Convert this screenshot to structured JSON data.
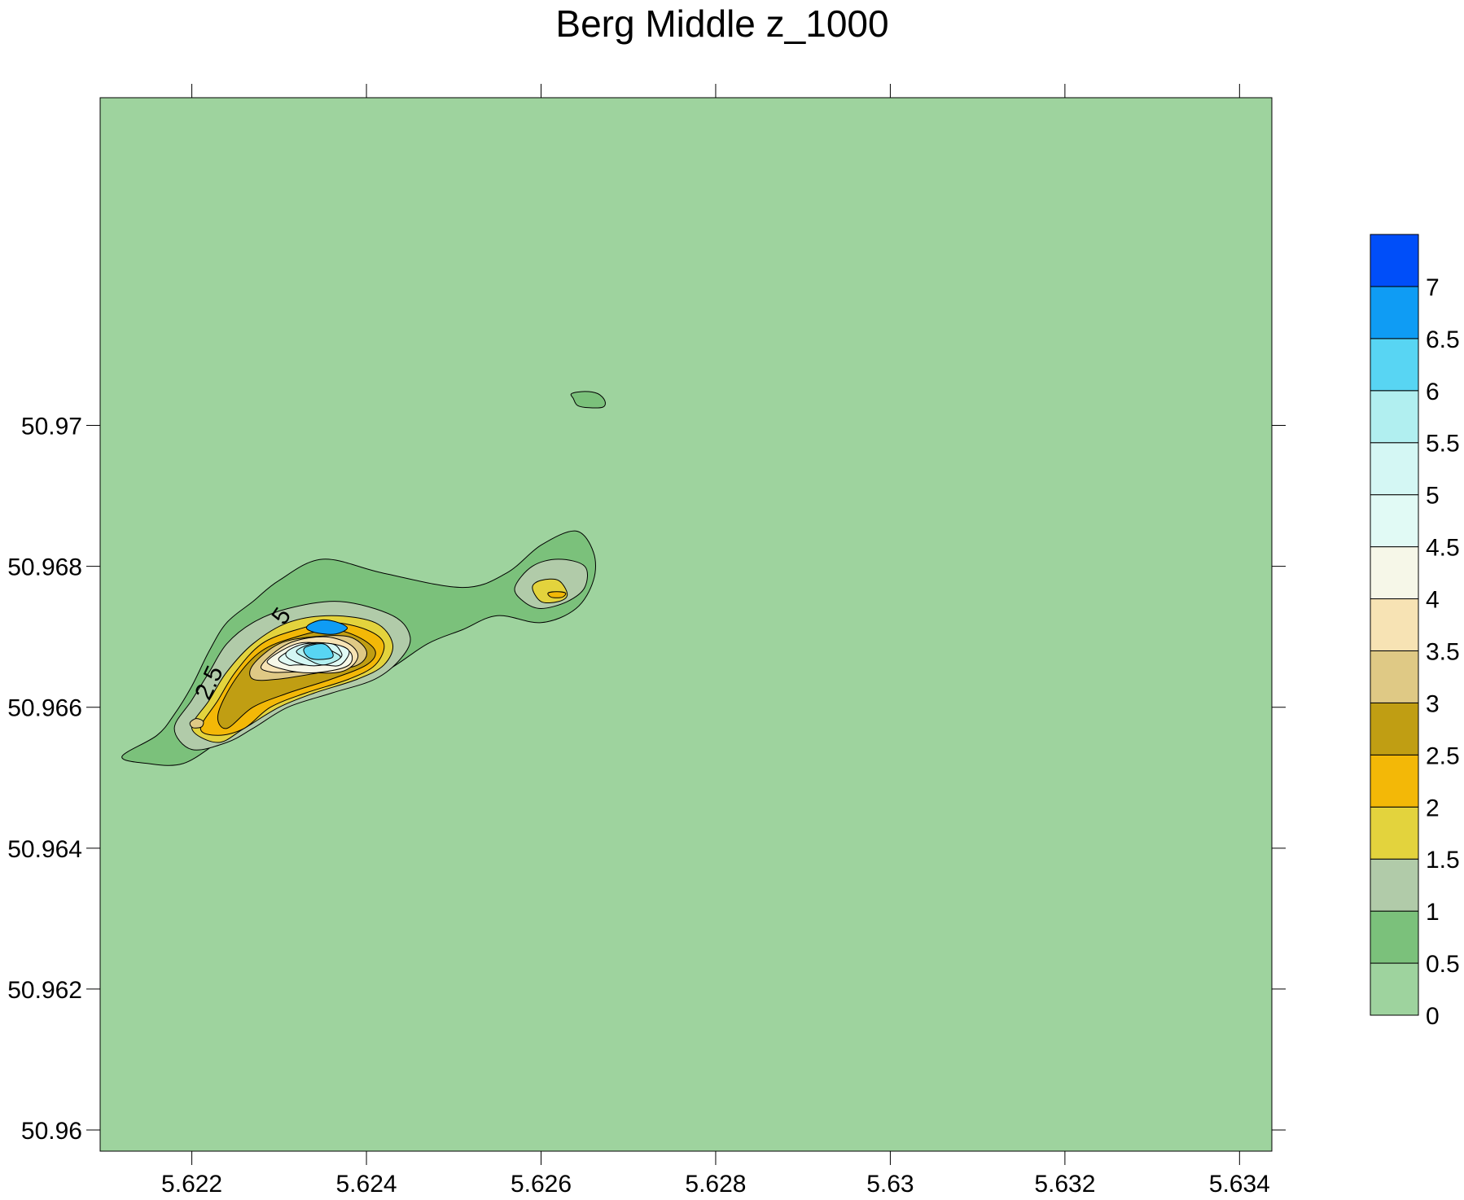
{
  "chart_data": {
    "type": "contour",
    "title": "Berg Middle z_1000",
    "xlabel": "",
    "ylabel": "",
    "xlim": [
      5.62095,
      5.63437
    ],
    "ylim": [
      50.9597,
      50.97465
    ],
    "x_ticks": [
      "5.622",
      "5.624",
      "5.626",
      "5.628",
      "5.63",
      "5.632",
      "5.634"
    ],
    "x_tick_values": [
      5.622,
      5.624,
      5.626,
      5.628,
      5.63,
      5.632,
      5.634
    ],
    "y_ticks": [
      "50.97",
      "50.968",
      "50.966",
      "50.964",
      "50.962",
      "50.96"
    ],
    "y_tick_values": [
      50.97,
      50.968,
      50.966,
      50.964,
      50.962,
      50.96
    ],
    "grid": false,
    "legend": "colorbar-right",
    "levels": [
      0,
      0.5,
      1,
      1.5,
      2,
      2.5,
      3,
      3.5,
      4,
      4.5,
      5,
      5.5,
      6,
      6.5,
      7
    ],
    "colorbar_labels": [
      "0",
      "0.5",
      "1",
      "1.5",
      "2",
      "2.5",
      "3",
      "3.5",
      "4",
      "4.5",
      "5",
      "5.5",
      "6",
      "6.5",
      "7"
    ],
    "colorbar_max": 7.5,
    "colors": [
      "#9ed39e",
      "#7bc17b",
      "#b1cba9",
      "#e3d33d",
      "#f3b807",
      "#c09e13",
      "#dfc985",
      "#f7e3b4",
      "#f6f7e8",
      "#e1faf5",
      "#d4f7f4",
      "#b1eff0",
      "#58d5f3",
      "#0f9cf4",
      "#004ef9"
    ],
    "contour_labels": [
      "5",
      "2.5"
    ],
    "peaks": [
      {
        "x": 5.62355,
        "y": 50.96712,
        "value": 6.6
      },
      {
        "x": 5.62205,
        "y": 50.96577,
        "value": 4.0
      },
      {
        "x": 5.6261,
        "y": 50.9676,
        "value": 2.2
      },
      {
        "x": 5.62664,
        "y": 50.97035,
        "value": 0.6
      }
    ],
    "contours": [
      {
        "level": 0.5,
        "points": [
          [
            5.6216,
            50.9656
          ],
          [
            5.6218,
            50.9659
          ],
          [
            5.622,
            50.9663
          ],
          [
            5.6222,
            50.9668
          ],
          [
            5.6224,
            50.9672
          ],
          [
            5.6227,
            50.9675
          ],
          [
            5.623,
            50.9678
          ],
          [
            5.6235,
            50.9681
          ],
          [
            5.6242,
            50.9679
          ],
          [
            5.6251,
            50.9677
          ],
          [
            5.6256,
            50.9679
          ],
          [
            5.626,
            50.9683
          ],
          [
            5.6264,
            50.9685
          ],
          [
            5.6266,
            50.9682
          ],
          [
            5.6266,
            50.9678
          ],
          [
            5.6264,
            50.9674
          ],
          [
            5.626,
            50.9672
          ],
          [
            5.6255,
            50.9673
          ],
          [
            5.6251,
            50.9671
          ],
          [
            5.6247,
            50.9669
          ],
          [
            5.6242,
            50.9665
          ],
          [
            5.6237,
            50.9663
          ],
          [
            5.6232,
            50.9661
          ],
          [
            5.6227,
            50.9658
          ],
          [
            5.6223,
            50.9655
          ],
          [
            5.6219,
            50.9652
          ],
          [
            5.6215,
            50.9652
          ],
          [
            5.6212,
            50.9653
          ]
        ]
      },
      {
        "level": 0.5,
        "points": [
          [
            5.62635,
            50.97045
          ],
          [
            5.6265,
            50.97048
          ],
          [
            5.62665,
            50.97045
          ],
          [
            5.62673,
            50.97035
          ],
          [
            5.62671,
            50.97026
          ],
          [
            5.62655,
            50.97025
          ],
          [
            5.62642,
            50.97028
          ],
          [
            5.62637,
            50.97038
          ]
        ]
      },
      {
        "level": 1.0,
        "points": [
          [
            5.6218,
            50.9657
          ],
          [
            5.622,
            50.9661
          ],
          [
            5.6222,
            50.9665
          ],
          [
            5.6224,
            50.9669
          ],
          [
            5.6227,
            50.9672
          ],
          [
            5.6231,
            50.9674
          ],
          [
            5.6237,
            50.9675
          ],
          [
            5.6243,
            50.9673
          ],
          [
            5.6245,
            50.967
          ],
          [
            5.6244,
            50.9667
          ],
          [
            5.6241,
            50.9664
          ],
          [
            5.6236,
            50.9662
          ],
          [
            5.6231,
            50.966
          ],
          [
            5.6227,
            50.9657
          ],
          [
            5.6224,
            50.9655
          ],
          [
            5.622,
            50.9654
          ]
        ]
      },
      {
        "level": 1.0,
        "points": [
          [
            5.6257,
            50.9677
          ],
          [
            5.6259,
            50.968
          ],
          [
            5.6262,
            50.9681
          ],
          [
            5.6265,
            50.968
          ],
          [
            5.6265,
            50.9677
          ],
          [
            5.6263,
            50.9675
          ],
          [
            5.626,
            50.9674
          ],
          [
            5.6258,
            50.9675
          ]
        ]
      },
      {
        "level": 1.5,
        "points": [
          [
            5.622,
            50.9657
          ],
          [
            5.6222,
            50.9661
          ],
          [
            5.6224,
            50.9665
          ],
          [
            5.6227,
            50.9669
          ],
          [
            5.6231,
            50.9672
          ],
          [
            5.6236,
            50.9673
          ],
          [
            5.6241,
            50.9672
          ],
          [
            5.6243,
            50.9669
          ],
          [
            5.6242,
            50.9666
          ],
          [
            5.6239,
            50.9664
          ],
          [
            5.6234,
            50.9662
          ],
          [
            5.623,
            50.966
          ],
          [
            5.6226,
            50.9657
          ],
          [
            5.6223,
            50.9655
          ]
        ]
      },
      {
        "level": 1.5,
        "points": [
          [
            5.6259,
            50.9677
          ],
          [
            5.626,
            50.9678
          ],
          [
            5.6262,
            50.9678
          ],
          [
            5.6263,
            50.9676
          ],
          [
            5.6262,
            50.9675
          ],
          [
            5.626,
            50.9675
          ]
        ]
      },
      {
        "level": 2.0,
        "points": [
          [
            5.6221,
            50.9657
          ],
          [
            5.6223,
            50.9661
          ],
          [
            5.6225,
            50.9665
          ],
          [
            5.6228,
            50.9669
          ],
          [
            5.6232,
            50.9671
          ],
          [
            5.6236,
            50.9672
          ],
          [
            5.624,
            50.9671
          ],
          [
            5.6242,
            50.9669
          ],
          [
            5.6241,
            50.9666
          ],
          [
            5.6238,
            50.9664
          ],
          [
            5.6233,
            50.9662
          ],
          [
            5.6229,
            50.966
          ],
          [
            5.6226,
            50.9657
          ],
          [
            5.6223,
            50.9656
          ]
        ]
      },
      {
        "level": 2.0,
        "points": [
          [
            5.62608,
            50.96762
          ],
          [
            5.62618,
            50.96764
          ],
          [
            5.62628,
            50.96762
          ],
          [
            5.62624,
            50.96756
          ],
          [
            5.62612,
            50.96756
          ]
        ]
      },
      {
        "level": 2.5,
        "points": [
          [
            5.6223,
            50.9659
          ],
          [
            5.6225,
            50.9664
          ],
          [
            5.6228,
            50.9668
          ],
          [
            5.6232,
            50.967
          ],
          [
            5.6236,
            50.9671
          ],
          [
            5.6239,
            50.967
          ],
          [
            5.6241,
            50.9668
          ],
          [
            5.624,
            50.9666
          ],
          [
            5.6236,
            50.9664
          ],
          [
            5.6231,
            50.9662
          ],
          [
            5.6227,
            50.966
          ],
          [
            5.6224,
            50.9657
          ]
        ]
      },
      {
        "level": 3.0,
        "points": [
          [
            5.6227,
            50.9666
          ],
          [
            5.623,
            50.9669
          ],
          [
            5.6234,
            50.967
          ],
          [
            5.6238,
            50.967
          ],
          [
            5.624,
            50.9668
          ],
          [
            5.6239,
            50.9666
          ],
          [
            5.6235,
            50.9665
          ],
          [
            5.623,
            50.9664
          ],
          [
            5.6227,
            50.9664
          ]
        ]
      },
      {
        "level": 3.0,
        "points": [
          [
            5.62198,
            50.96578
          ],
          [
            5.62205,
            50.96584
          ],
          [
            5.62213,
            50.9658
          ],
          [
            5.62211,
            50.96572
          ],
          [
            5.62201,
            50.96571
          ]
        ]
      },
      {
        "level": 3.5,
        "points": [
          [
            5.6228,
            50.9666
          ],
          [
            5.6231,
            50.9669
          ],
          [
            5.6235,
            50.967
          ],
          [
            5.6238,
            50.9669
          ],
          [
            5.6239,
            50.9667
          ],
          [
            5.6237,
            50.9665
          ],
          [
            5.6232,
            50.9665
          ],
          [
            5.6229,
            50.9665
          ]
        ]
      },
      {
        "level": 4.0,
        "points": [
          [
            5.6229,
            50.9667
          ],
          [
            5.6232,
            50.9669
          ],
          [
            5.6235,
            50.9669
          ],
          [
            5.6238,
            50.9668
          ],
          [
            5.6238,
            50.9666
          ],
          [
            5.6235,
            50.9665
          ],
          [
            5.6232,
            50.9665
          ],
          [
            5.6229,
            50.9666
          ]
        ]
      },
      {
        "level": 4.5,
        "points": [
          [
            5.623,
            50.9667
          ],
          [
            5.6233,
            50.9669
          ],
          [
            5.6236,
            50.9669
          ],
          [
            5.6238,
            50.9668
          ],
          [
            5.6237,
            50.9666
          ],
          [
            5.6235,
            50.9666
          ],
          [
            5.6232,
            50.9666
          ],
          [
            5.6231,
            50.9666
          ]
        ]
      },
      {
        "level": 5.0,
        "points": [
          [
            5.6231,
            50.9668
          ],
          [
            5.6233,
            50.9669
          ],
          [
            5.6236,
            50.9669
          ],
          [
            5.6237,
            50.9668
          ],
          [
            5.6237,
            50.9667
          ],
          [
            5.6235,
            50.9666
          ],
          [
            5.6233,
            50.9666
          ],
          [
            5.6231,
            50.9667
          ]
        ]
      },
      {
        "level": 5.5,
        "points": [
          [
            5.6232,
            50.9668
          ],
          [
            5.6234,
            50.9669
          ],
          [
            5.6236,
            50.9668
          ],
          [
            5.6237,
            50.9667
          ],
          [
            5.6235,
            50.9666
          ],
          [
            5.6233,
            50.9667
          ]
        ]
      },
      {
        "level": 6.0,
        "points": [
          [
            5.6233,
            50.96685
          ],
          [
            5.6235,
            50.9669
          ],
          [
            5.6236,
            50.9668
          ],
          [
            5.6236,
            50.9667
          ],
          [
            5.6234,
            50.96668
          ],
          [
            5.6233,
            50.96675
          ]
        ]
      },
      {
        "level": 6.5,
        "points": [
          [
            5.62335,
            50.96718
          ],
          [
            5.6235,
            50.96724
          ],
          [
            5.62368,
            50.9672
          ],
          [
            5.62378,
            50.96712
          ],
          [
            5.62365,
            50.96704
          ],
          [
            5.62345,
            50.96705
          ],
          [
            5.62332,
            50.96711
          ]
        ]
      }
    ]
  }
}
